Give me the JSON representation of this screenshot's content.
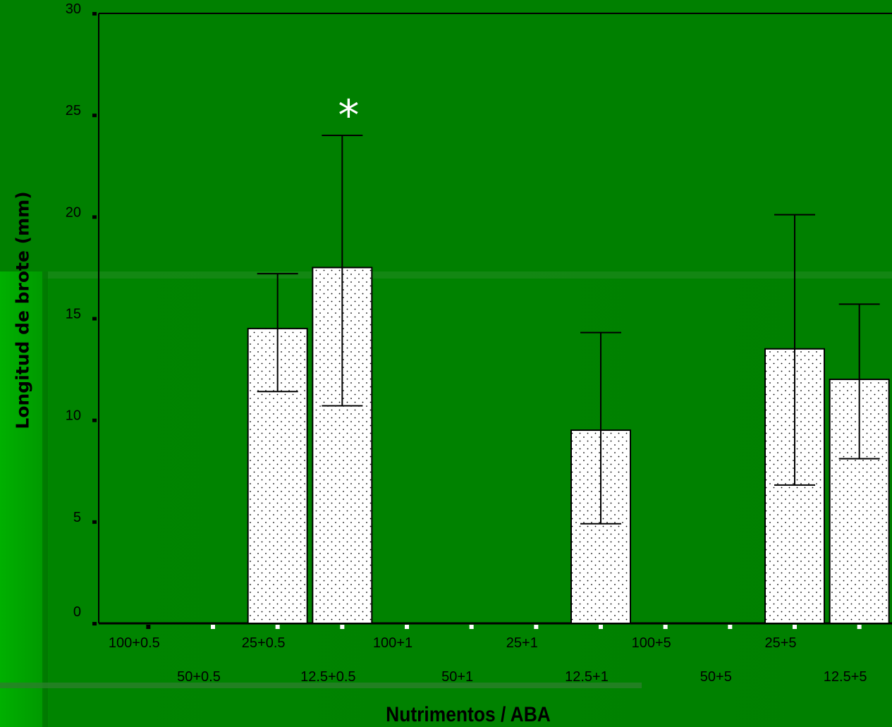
{
  "chart_data": {
    "type": "bar",
    "title": "",
    "xlabel": "Nutrimentos / ABA",
    "ylabel": "Longitud de brote (mm)",
    "ylim": [
      0,
      30
    ],
    "yticks": [
      0,
      5,
      10,
      15,
      20,
      25,
      30
    ],
    "categories": [
      "100+0.5",
      "50+0.5",
      "25+0.5",
      "12.5+0.5",
      "100+1",
      "50+1",
      "25+1",
      "12.5+1",
      "100+5",
      "50+5",
      "25+5",
      "12.5+5"
    ],
    "values": [
      0,
      0,
      14.5,
      17.5,
      0,
      0,
      0,
      9.5,
      0,
      0,
      13.5,
      12.0
    ],
    "error_low": [
      null,
      null,
      11.4,
      10.7,
      null,
      null,
      null,
      4.9,
      null,
      null,
      6.8,
      8.1
    ],
    "error_high": [
      null,
      null,
      17.2,
      24.0,
      null,
      null,
      null,
      14.3,
      null,
      null,
      20.1,
      15.7
    ],
    "annotations": [
      {
        "category": "12.5+0.5",
        "text": "*"
      }
    ],
    "grid": false,
    "legend": "none",
    "colors": {
      "background": "#008000",
      "bar_fill": "#ffffff",
      "dots": "#000000",
      "axis": "#000000",
      "annotation": "#ffffff"
    }
  }
}
